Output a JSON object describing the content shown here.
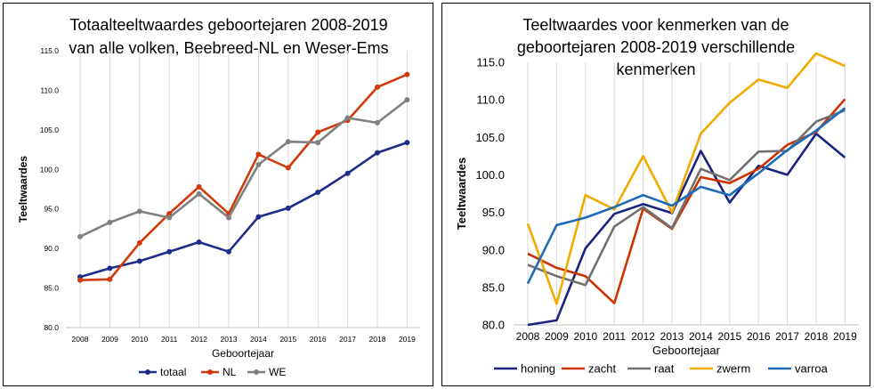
{
  "chart_data": [
    {
      "type": "line",
      "title_lines": [
        "Totaalteeltwaardes geboortejaren 2008-2019",
        "van alle volken, Beebreed-NL en Weser-Ems"
      ],
      "xlabel": "Geboortejaar",
      "ylabel": "Teeltwaardes",
      "categories": [
        "2008",
        "2009",
        "2010",
        "2011",
        "2012",
        "2013",
        "2014",
        "2015",
        "2016",
        "2017",
        "2018",
        "2019"
      ],
      "ylim": [
        80,
        115
      ],
      "yticks": [
        80,
        85,
        90,
        95,
        100,
        105,
        110,
        115
      ],
      "ytick_labels": [
        "80.0",
        "85.0",
        "90.0",
        "95.0",
        "100.0",
        "105.0",
        "110.0",
        "115.0"
      ],
      "grid": "vertical",
      "legend_position": "bottom",
      "markers": true,
      "series": [
        {
          "name": "totaal",
          "color": "#1f2d8a",
          "values": [
            86.4,
            87.5,
            88.4,
            89.6,
            90.8,
            89.6,
            94.0,
            95.1,
            97.1,
            99.5,
            102.1,
            103.4
          ]
        },
        {
          "name": "NL",
          "color": "#d23a0a",
          "values": [
            86.0,
            86.1,
            90.7,
            94.4,
            97.8,
            94.4,
            101.9,
            100.2,
            104.7,
            106.2,
            110.4,
            112.0
          ]
        },
        {
          "name": "WE",
          "color": "#808080",
          "values": [
            91.5,
            93.3,
            94.7,
            93.9,
            96.9,
            93.9,
            100.6,
            103.5,
            103.4,
            106.5,
            105.9,
            108.8
          ]
        }
      ]
    },
    {
      "type": "line",
      "title_lines": [
        "Teeltwaardes voor kenmerken van de",
        "geboortejaren 2008-2019 verschillende",
        "kenmerken"
      ],
      "xlabel": "Geboortejaar",
      "ylabel": "Teeltwaardes",
      "categories": [
        "2008",
        "2009",
        "2010",
        "2011",
        "2012",
        "2013",
        "2014",
        "2015",
        "2016",
        "2017",
        "2018",
        "2019"
      ],
      "ylim": [
        80,
        115
      ],
      "yticks": [
        80,
        85,
        90,
        95,
        100,
        105,
        110,
        115
      ],
      "ytick_labels": [
        "80.0",
        "85.0",
        "90.0",
        "95.0",
        "100.0",
        "105.0",
        "110.0",
        "115.0"
      ],
      "grid": "vertical",
      "legend_position": "bottom",
      "markers": false,
      "series": [
        {
          "name": "honing",
          "color": "#1a237e",
          "values": [
            80.0,
            80.6,
            90.2,
            94.8,
            96.1,
            94.9,
            103.2,
            96.3,
            101.2,
            100.0,
            105.5,
            102.3
          ]
        },
        {
          "name": "zacht",
          "color": "#cc3300",
          "values": [
            89.5,
            87.6,
            86.5,
            82.9,
            95.5,
            92.8,
            99.7,
            98.9,
            100.8,
            104.0,
            105.7,
            110.1
          ]
        },
        {
          "name": "raat",
          "color": "#707070",
          "values": [
            88.0,
            86.5,
            85.3,
            93.1,
            95.7,
            92.9,
            100.8,
            99.3,
            103.1,
            103.2,
            107.1,
            108.6
          ]
        },
        {
          "name": "zwerm",
          "color": "#f2a900",
          "values": [
            93.5,
            82.8,
            97.3,
            95.4,
            102.5,
            95.0,
            105.5,
            109.6,
            112.7,
            111.6,
            116.2,
            114.5
          ]
        },
        {
          "name": "varroa",
          "color": "#1e6bb8",
          "values": [
            85.5,
            93.3,
            94.3,
            95.7,
            97.3,
            95.9,
            98.4,
            97.3,
            100.2,
            103.3,
            105.9,
            108.9
          ]
        }
      ]
    }
  ]
}
